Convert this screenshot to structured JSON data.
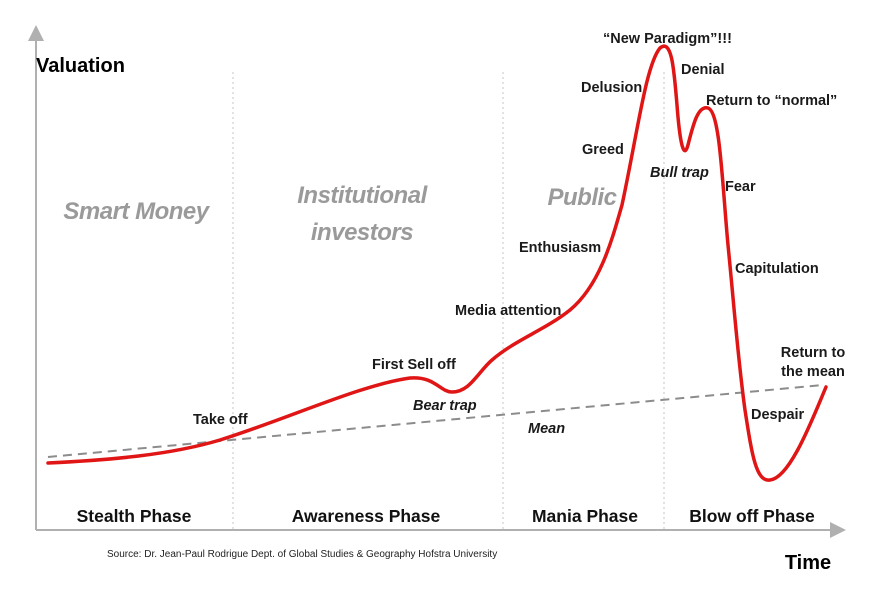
{
  "axes": {
    "y_label": "Valuation",
    "x_label": "Time"
  },
  "phases": {
    "stealth": "Stealth Phase",
    "awareness": "Awareness Phase",
    "mania": "Mania Phase",
    "blowoff": "Blow off Phase"
  },
  "groups": {
    "smart_money": "Smart Money",
    "institutional_1": "Institutional",
    "institutional_2": "investors",
    "public": "Public"
  },
  "stages": {
    "take_off": "Take off",
    "first_sell_off": "First Sell off",
    "bear_trap": "Bear trap",
    "media_attention": "Media attention",
    "enthusiasm": "Enthusiasm",
    "greed": "Greed",
    "delusion": "Delusion",
    "new_paradigm": "“New Paradigm”!!!",
    "denial": "Denial",
    "bull_trap": "Bull trap",
    "return_to_normal": "Return to “normal”",
    "fear": "Fear",
    "capitulation": "Capitulation",
    "despair": "Despair",
    "return_to_mean_1": "Return to",
    "return_to_mean_2": "the mean",
    "mean": "Mean"
  },
  "source": "Source: Dr. Jean-Paul Rodrigue Dept. of Global Studies & Geography Hofstra University",
  "colors": {
    "curve": "#e01515",
    "mean_line": "#8c8c8c",
    "axis": "#b0b0b0",
    "divider": "#c4c4c4",
    "group_text": "#9a9a9a"
  }
}
